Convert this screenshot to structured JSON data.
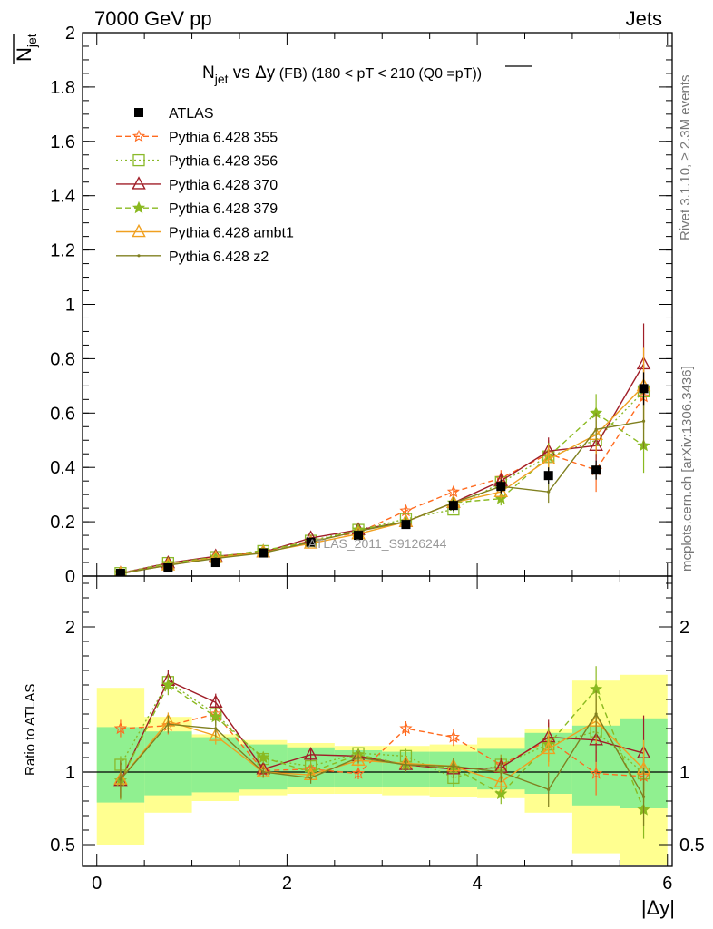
{
  "header": {
    "left": "7000 GeV pp",
    "right": "Jets"
  },
  "side_labels": {
    "rivet": "Rivet 3.1.10, ≥ 2.3M events",
    "mcplots": "mcplots.cern.ch [arXiv:1306.3436]"
  },
  "watermark": "ATLAS_2011_S9126244",
  "chart_data": [
    {
      "type": "line",
      "title_parts": {
        "n": "N",
        "jet_sub": "jet",
        "vs": " vs ",
        "dy": "Δy",
        "fb": " (FB) ",
        "range": "(180 < pT < 210 (Q0 =",
        "pt": "pT",
        "close": "))"
      },
      "ylabel_parts": {
        "n": "N",
        "sub": "jet"
      },
      "ylim": [
        0,
        2
      ],
      "xlim": [
        -0.15,
        6.05
      ],
      "yticks": [
        {
          "v": 0,
          "label": "0"
        },
        {
          "v": 0.2,
          "label": "0.2"
        },
        {
          "v": 0.4,
          "label": "0.4"
        },
        {
          "v": 0.6,
          "label": "0.6"
        },
        {
          "v": 0.8,
          "label": "0.8"
        },
        {
          "v": 1,
          "label": "1"
        },
        {
          "v": 1.2,
          "label": "1.2"
        },
        {
          "v": 1.4,
          "label": "1.4"
        },
        {
          "v": 1.6,
          "label": "1.6"
        },
        {
          "v": 1.8,
          "label": "1.8"
        },
        {
          "v": 2,
          "label": "2"
        }
      ],
      "x": [
        0.25,
        0.75,
        1.25,
        1.75,
        2.25,
        2.75,
        3.25,
        3.75,
        4.25,
        4.75,
        5.25,
        5.75
      ],
      "data_series": {
        "name": "ATLAS",
        "values": [
          0.01,
          0.03,
          0.05,
          0.085,
          0.125,
          0.15,
          0.19,
          0.26,
          0.33,
          0.37,
          0.39,
          0.69
        ],
        "err": [
          0.003,
          0.005,
          0.006,
          0.008,
          0.01,
          0.012,
          0.014,
          0.02,
          0.025,
          0.03,
          0.035,
          0.06
        ]
      },
      "series": [
        {
          "name": "Pythia 6.428 355",
          "color": "#ff6a1e",
          "dash": "6,4",
          "marker": "star-open",
          "values": [
            0.013,
            0.04,
            0.07,
            0.09,
            0.13,
            0.16,
            0.24,
            0.31,
            0.36,
            0.45,
            0.39,
            0.66
          ],
          "err": [
            0.002,
            0.004,
            0.005,
            0.006,
            0.008,
            0.01,
            0.013,
            0.02,
            0.03,
            0.05,
            0.08,
            0.12
          ]
        },
        {
          "name": "Pythia 6.428 356",
          "color": "#8ab92a",
          "dash": "2,3",
          "marker": "square-open",
          "values": [
            0.011,
            0.048,
            0.07,
            0.092,
            0.13,
            0.17,
            0.21,
            0.245,
            0.345,
            0.44,
            0.5,
            0.68
          ],
          "err": [
            0.002,
            0.004,
            0.005,
            0.006,
            0.008,
            0.01,
            0.012,
            0.015,
            0.03,
            0.05,
            0.07,
            0.1
          ]
        },
        {
          "name": "Pythia 6.428 370",
          "color": "#a01e28",
          "dash": "",
          "marker": "triangle-open",
          "values": [
            0.01,
            0.048,
            0.073,
            0.088,
            0.14,
            0.17,
            0.2,
            0.27,
            0.35,
            0.46,
            0.48,
            0.78
          ],
          "err": [
            0.002,
            0.004,
            0.005,
            0.006,
            0.009,
            0.01,
            0.012,
            0.02,
            0.03,
            0.05,
            0.07,
            0.15
          ]
        },
        {
          "name": "Pythia 6.428 379",
          "color": "#8ab920",
          "dash": "6,4",
          "marker": "star",
          "values": [
            0.009,
            0.047,
            0.07,
            0.095,
            0.125,
            0.17,
            0.2,
            0.27,
            0.285,
            0.44,
            0.6,
            0.48
          ],
          "err": [
            0.002,
            0.004,
            0.005,
            0.006,
            0.008,
            0.01,
            0.012,
            0.02,
            0.025,
            0.05,
            0.07,
            0.1
          ]
        },
        {
          "name": "Pythia 6.428 ambt1",
          "color": "#f0a020",
          "dash": "",
          "marker": "triangle-open",
          "values": [
            0.009,
            0.04,
            0.068,
            0.088,
            0.12,
            0.155,
            0.2,
            0.27,
            0.31,
            0.43,
            0.52,
            0.7
          ],
          "err": [
            0.002,
            0.004,
            0.005,
            0.006,
            0.008,
            0.01,
            0.012,
            0.02,
            0.025,
            0.05,
            0.07,
            0.14
          ]
        },
        {
          "name": "Pythia 6.428 z2",
          "color": "#808020",
          "dash": "",
          "marker": "dot",
          "values": [
            0.009,
            0.04,
            0.065,
            0.085,
            0.125,
            0.165,
            0.2,
            0.27,
            0.33,
            0.31,
            0.54,
            0.57
          ],
          "err": [
            0.002,
            0.004,
            0.005,
            0.006,
            0.008,
            0.01,
            0.012,
            0.02,
            0.025,
            0.04,
            0.06,
            0.1
          ]
        }
      ]
    },
    {
      "type": "line",
      "ylabel": "Ratio to ATLAS",
      "xlabel": "|Δy|",
      "ylim": [
        0.35,
        2.35
      ],
      "xlim": [
        -0.15,
        6.05
      ],
      "yticks": [
        {
          "v": 0.5,
          "label": "0.5"
        },
        {
          "v": 1,
          "label": "1"
        },
        {
          "v": 2,
          "label": "2"
        }
      ],
      "xticks": [
        {
          "v": 0,
          "label": "0"
        },
        {
          "v": 2,
          "label": "2"
        },
        {
          "v": 4,
          "label": "4"
        },
        {
          "v": 6,
          "label": "6"
        }
      ],
      "bands": {
        "edges": [
          0,
          0.5,
          1,
          1.5,
          2,
          2.5,
          3,
          3.5,
          4,
          4.5,
          5,
          5.5,
          6
        ],
        "stat_lo": [
          0.79,
          0.84,
          0.86,
          0.88,
          0.9,
          0.9,
          0.9,
          0.9,
          0.88,
          0.85,
          0.77,
          0.75
        ],
        "stat_hi": [
          1.31,
          1.28,
          1.24,
          1.19,
          1.17,
          1.15,
          1.14,
          1.14,
          1.16,
          1.27,
          1.32,
          1.37
        ],
        "sys_lo": [
          0.5,
          0.72,
          0.8,
          0.84,
          0.85,
          0.85,
          0.84,
          0.83,
          0.82,
          0.72,
          0.44,
          0.36
        ],
        "sys_hi": [
          1.58,
          1.38,
          1.26,
          1.22,
          1.2,
          1.18,
          1.18,
          1.19,
          1.24,
          1.3,
          1.63,
          1.67
        ],
        "stat_color": "#90f090",
        "sys_color": "#ffff90"
      },
      "x": [
        0.25,
        0.75,
        1.25,
        1.75,
        2.25,
        2.75,
        3.25,
        3.75,
        4.25,
        4.75,
        5.25,
        5.75
      ],
      "series": [
        {
          "name": "Pythia 6.428 355",
          "values": [
            1.3,
            1.32,
            1.4,
            1.01,
            1.02,
            0.99,
            1.3,
            1.24,
            1.05,
            1.22,
            0.99,
            0.97
          ],
          "err": [
            0.06,
            0.06,
            0.06,
            0.04,
            0.04,
            0.04,
            0.05,
            0.06,
            0.07,
            0.12,
            0.15,
            0.18
          ]
        },
        {
          "name": "Pythia 6.428 356",
          "values": [
            1.05,
            1.62,
            1.4,
            1.09,
            1.04,
            1.13,
            1.11,
            0.96,
            1.05,
            1.19,
            1.28,
            0.99
          ],
          "err": [
            0.06,
            0.06,
            0.06,
            0.04,
            0.04,
            0.04,
            0.05,
            0.06,
            0.07,
            0.12,
            0.15,
            0.18
          ]
        },
        {
          "name": "Pythia 6.428 370",
          "values": [
            0.94,
            1.63,
            1.48,
            1.02,
            1.12,
            1.11,
            1.05,
            1.02,
            1.03,
            1.24,
            1.22,
            1.13
          ],
          "err": [
            0.13,
            0.07,
            0.06,
            0.04,
            0.04,
            0.04,
            0.05,
            0.06,
            0.07,
            0.12,
            0.15,
            0.26
          ]
        },
        {
          "name": "Pythia 6.428 379",
          "values": [
            0.94,
            1.6,
            1.38,
            1.1,
            1.0,
            1.12,
            1.05,
            1.03,
            0.85,
            1.19,
            1.57,
            0.74
          ],
          "err": [
            0.13,
            0.07,
            0.06,
            0.04,
            0.04,
            0.04,
            0.05,
            0.06,
            0.07,
            0.12,
            0.16,
            0.2
          ]
        },
        {
          "name": "Pythia 6.428 ambt1",
          "values": [
            0.95,
            1.35,
            1.25,
            1.0,
            0.98,
            1.08,
            1.06,
            1.04,
            0.93,
            1.16,
            1.35,
            1.02
          ],
          "err": [
            0.13,
            0.06,
            0.06,
            0.04,
            0.04,
            0.04,
            0.05,
            0.06,
            0.07,
            0.12,
            0.15,
            0.2
          ]
        },
        {
          "name": "Pythia 6.428 z2",
          "values": [
            0.95,
            1.33,
            1.3,
            1.0,
            0.96,
            1.1,
            1.05,
            1.04,
            1.0,
            0.88,
            1.4,
            0.83
          ],
          "err": [
            0.13,
            0.06,
            0.06,
            0.04,
            0.04,
            0.04,
            0.05,
            0.06,
            0.07,
            0.12,
            0.16,
            0.2
          ]
        }
      ]
    }
  ]
}
